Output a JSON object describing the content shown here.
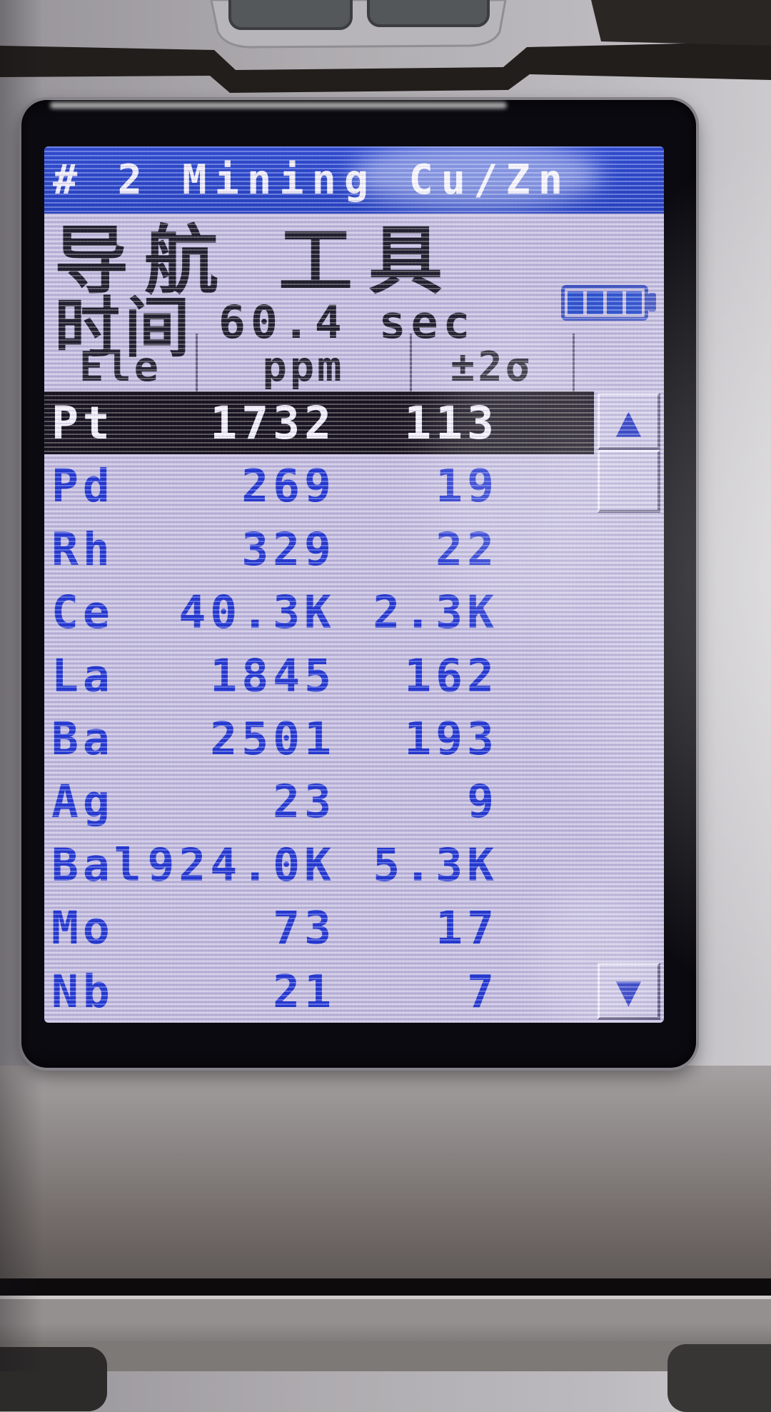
{
  "screen": {
    "title": "# 2 Mining Cu/Zn",
    "menu_bar": {
      "items": [
        {
          "label": "导航"
        },
        {
          "label": "工具"
        }
      ]
    },
    "status": {
      "time_label": "时间",
      "time_value": "60.4 sec",
      "battery": {
        "segments_total": 4,
        "segments_filled": 4
      }
    },
    "results_table": {
      "columns": [
        "Ele",
        "ppm",
        "±2σ"
      ],
      "rows": [
        {
          "element": "Pt",
          "ppm": "1732",
          "sigma": "113",
          "selected": true
        },
        {
          "element": "Pd",
          "ppm": "269",
          "sigma": "19",
          "selected": false
        },
        {
          "element": "Rh",
          "ppm": "329",
          "sigma": "22",
          "selected": false
        },
        {
          "element": "Ce",
          "ppm": "40.3K",
          "sigma": "2.3K",
          "selected": false
        },
        {
          "element": "La",
          "ppm": "1845",
          "sigma": "162",
          "selected": false
        },
        {
          "element": "Ba",
          "ppm": "2501",
          "sigma": "193",
          "selected": false
        },
        {
          "element": "Ag",
          "ppm": "23",
          "sigma": "9",
          "selected": false
        },
        {
          "element": "Bal",
          "ppm": "924.0K",
          "sigma": "5.3K",
          "selected": false
        },
        {
          "element": "Mo",
          "ppm": "73",
          "sigma": "17",
          "selected": false
        },
        {
          "element": "Nb",
          "ppm": "21",
          "sigma": "7",
          "selected": false
        }
      ]
    },
    "scrollbar": {
      "up_icon": "▲",
      "down_icon": "▼"
    },
    "colors": {
      "title_bar_blue": "#2b49cd",
      "value_blue": "#2136d4",
      "selected_row_bg": "#140f18",
      "lcd_lavender": "#c5bee0",
      "battery_blue": "#2d52d2"
    }
  }
}
